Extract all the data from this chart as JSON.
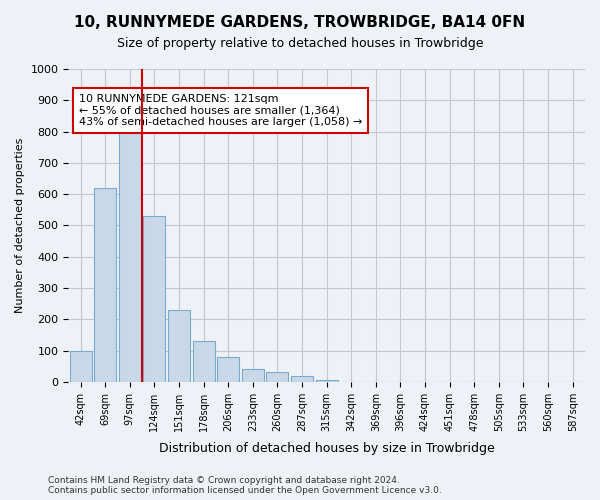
{
  "title": "10, RUNNYMEDE GARDENS, TROWBRIDGE, BA14 0FN",
  "subtitle": "Size of property relative to detached houses in Trowbridge",
  "xlabel": "Distribution of detached houses by size in Trowbridge",
  "ylabel": "Number of detached properties",
  "bar_color": "#c8d8e8",
  "bar_edge_color": "#7aabcf",
  "grid_color": "#c0c8d0",
  "background_color": "#eef2f7",
  "plot_bg_color": "#eef2f7",
  "marker_line_color": "#cc0000",
  "marker_value": 121,
  "annotation_text": "10 RUNNYMEDE GARDENS: 121sqm\n← 55% of detached houses are smaller (1,364)\n43% of semi-detached houses are larger (1,058) →",
  "annotation_box_color": "#ffffff",
  "annotation_border_color": "#cc0000",
  "footer_text": "Contains HM Land Registry data © Crown copyright and database right 2024.\nContains public sector information licensed under the Open Government Licence v3.0.",
  "categories": [
    "42sqm",
    "69sqm",
    "97sqm",
    "124sqm",
    "151sqm",
    "178sqm",
    "206sqm",
    "233sqm",
    "260sqm",
    "287sqm",
    "315sqm",
    "342sqm",
    "369sqm",
    "396sqm",
    "424sqm",
    "451sqm",
    "478sqm",
    "505sqm",
    "533sqm",
    "560sqm",
    "587sqm"
  ],
  "values": [
    100,
    620,
    800,
    530,
    230,
    130,
    80,
    40,
    30,
    20,
    5,
    0,
    0,
    0,
    0,
    0,
    0,
    0,
    0,
    0,
    0
  ],
  "ylim": [
    0,
    1000
  ],
  "yticks": [
    0,
    100,
    200,
    300,
    400,
    500,
    600,
    700,
    800,
    900,
    1000
  ]
}
